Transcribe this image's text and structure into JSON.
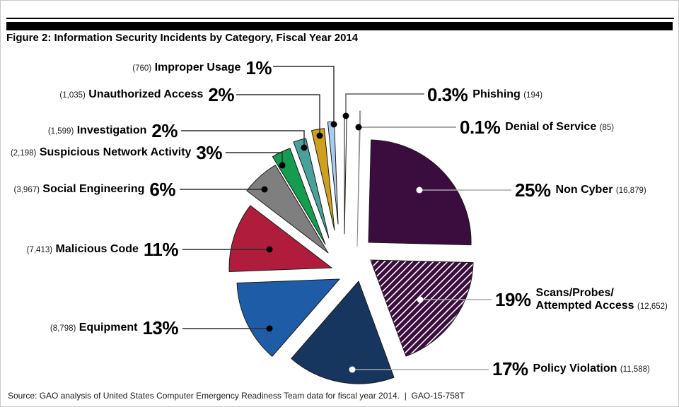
{
  "title": "Figure 2: Information Security Incidents by Category, Fiscal Year 2014",
  "source_line": "Source: GAO analysis of United States Computer Emergency Readiness Team data for fiscal year 2014.  |  GAO-15-758T",
  "chart_data": {
    "type": "pie",
    "title": "Information Security Incidents by Category, Fiscal Year 2014",
    "style": "exploded pie, clockwise from 12 o'clock, leader lines to outside labels",
    "legend_position": "none (direct labels)",
    "slices": [
      {
        "id": "phishing",
        "name": "Phishing",
        "pct_label": "0.3%",
        "value": 0.3,
        "count": 194,
        "count_label": "(194)",
        "color": "#ffffff",
        "outline": "#1a1a1a",
        "hatch": false,
        "dot": "black",
        "side": "right"
      },
      {
        "id": "dos",
        "name": "Denial of Service",
        "pct_label": "0.1%",
        "value": 0.1,
        "count": 85,
        "count_label": "(85)",
        "color": "#ffffff",
        "outline": "#8c8c8c",
        "hatch": false,
        "dot": "black",
        "side": "right"
      },
      {
        "id": "noncyber",
        "name": "Non Cyber",
        "pct_label": "25%",
        "value": 25,
        "count": 16879,
        "count_label": "(16,879)",
        "color": "#3b0c3e",
        "outline": "#1a1a1a",
        "hatch": false,
        "dot": "white",
        "side": "right"
      },
      {
        "id": "scans",
        "name": "Scans/Probes/\nAttempted Access",
        "pct_label": "19%",
        "value": 19,
        "count": 12652,
        "count_label": "(12,652)",
        "color": "#3b0c3e",
        "outline": "#1a1a1a",
        "hatch": true,
        "dot": "white",
        "side": "right"
      },
      {
        "id": "policy",
        "name": "Policy Violation",
        "pct_label": "17%",
        "value": 17,
        "count": 11588,
        "count_label": "(11,588)",
        "color": "#16365f",
        "outline": "#1a1a1a",
        "hatch": false,
        "dot": "white",
        "side": "right"
      },
      {
        "id": "equipment",
        "name": "Equipment",
        "pct_label": "13%",
        "value": 13,
        "count": 8798,
        "count_label": "(8,798)",
        "color": "#1f5ca8",
        "outline": "#1a1a1a",
        "hatch": false,
        "dot": "black",
        "side": "left"
      },
      {
        "id": "malicious",
        "name": "Malicious Code",
        "pct_label": "11%",
        "value": 11,
        "count": 7413,
        "count_label": "(7,413)",
        "color": "#b01c3c",
        "outline": "#1a1a1a",
        "hatch": false,
        "dot": "black",
        "side": "left"
      },
      {
        "id": "social",
        "name": "Social Engineering",
        "pct_label": "6%",
        "value": 6,
        "count": 3967,
        "count_label": "(3,967)",
        "color": "#7f7f7f",
        "outline": "#1a1a1a",
        "hatch": false,
        "dot": "black",
        "side": "left"
      },
      {
        "id": "suspicious",
        "name": "Suspicious Network Activity",
        "pct_label": "3%",
        "value": 3,
        "count": 2198,
        "count_label": "(2,198)",
        "color": "#149c4f",
        "outline": "#1a1a1a",
        "hatch": false,
        "dot": "black",
        "side": "left"
      },
      {
        "id": "investigation",
        "name": "Investigation",
        "pct_label": "2%",
        "value": 2,
        "count": 1599,
        "count_label": "(1,599)",
        "color": "#46a29b",
        "outline": "#1a1a1a",
        "hatch": false,
        "dot": "black",
        "side": "left"
      },
      {
        "id": "unauthorized",
        "name": "Unauthorized Access",
        "pct_label": "2%",
        "value": 2,
        "count": 1035,
        "count_label": "(1,035)",
        "color": "#cfa01d",
        "outline": "#1a1a1a",
        "hatch": false,
        "dot": "black",
        "side": "left"
      },
      {
        "id": "improper",
        "name": "Improper Usage",
        "pct_label": "1%",
        "value": 1,
        "count": 760,
        "count_label": "(760)",
        "color": "#a9cdf1",
        "outline": "#1a1a1a",
        "hatch": false,
        "dot": "black",
        "side": "left"
      }
    ],
    "colors": {
      "hatch_stripe": "#ffffff",
      "leader_left": "#2b2b2b",
      "leader_right": "#a6a6a6",
      "leader_dos": "#8c8c8c",
      "header_bar": "#000000"
    }
  }
}
